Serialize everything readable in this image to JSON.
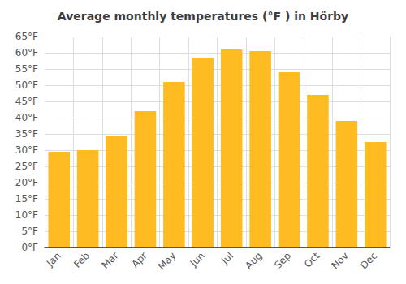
{
  "chart_data": {
    "type": "bar",
    "title": "Average monthly temperatures (°F ) in Hörby",
    "categories": [
      "Jan",
      "Feb",
      "Mar",
      "Apr",
      "May",
      "Jun",
      "Jul",
      "Aug",
      "Sep",
      "Oct",
      "Nov",
      "Dec"
    ],
    "values": [
      29.5,
      30.0,
      34.5,
      42.0,
      51.0,
      58.5,
      61.0,
      60.5,
      54.0,
      47.0,
      39.0,
      32.5
    ],
    "color": "#FFBB22",
    "ylim": [
      0,
      65
    ],
    "yticks": [
      {
        "value": 0,
        "label": "0°F"
      },
      {
        "value": 5,
        "label": "5°F"
      },
      {
        "value": 10,
        "label": "10°F"
      },
      {
        "value": 15,
        "label": "15°F"
      },
      {
        "value": 20,
        "label": "20°F"
      },
      {
        "value": 25,
        "label": "25°F"
      },
      {
        "value": 30,
        "label": "30°F"
      },
      {
        "value": 35,
        "label": "35°F"
      },
      {
        "value": 40,
        "label": "40°F"
      },
      {
        "value": 45,
        "label": "45°F"
      },
      {
        "value": 50,
        "label": "50°F"
      },
      {
        "value": 55,
        "label": "55°F"
      },
      {
        "value": 60,
        "label": "60°F"
      },
      {
        "value": 65,
        "label": "65°F"
      }
    ],
    "grid": true
  }
}
